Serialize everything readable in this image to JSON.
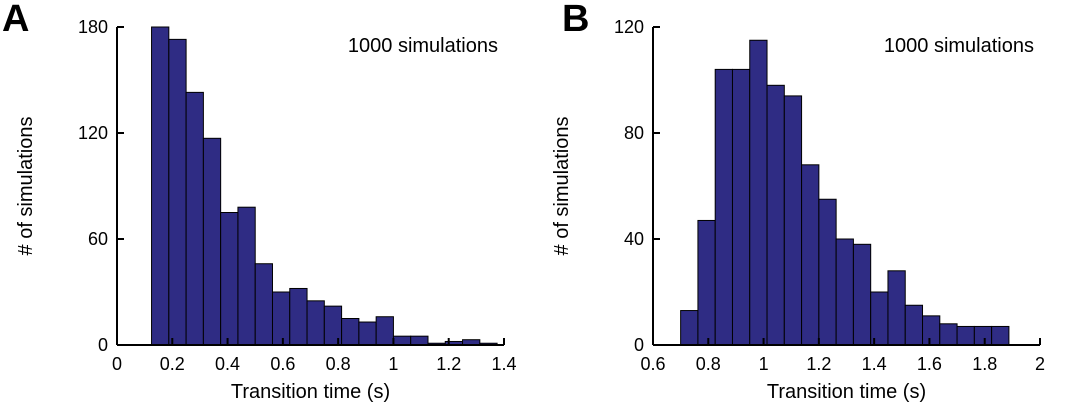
{
  "figure": {
    "background": "#ffffff",
    "bar_fill": "#2f2c84",
    "bar_stroke": "#000000",
    "axis_color": "#000000",
    "text_color": "#000000"
  },
  "panels": [
    {
      "letter": "A"
    },
    {
      "letter": "B"
    }
  ],
  "chart_data": [
    {
      "type": "bar",
      "panel": "A",
      "title": "",
      "annotation": "1000 simulations",
      "xlabel": "Transition time (s)",
      "ylabel": "# of simulations",
      "xlim": [
        0,
        1.4
      ],
      "ylim": [
        0,
        180
      ],
      "grid": false,
      "xtick_values": [
        0,
        0.2,
        0.4,
        0.6,
        0.8,
        1,
        1.2,
        1.4
      ],
      "xtick_labels": [
        "0",
        "0.2",
        "0.4",
        "0.6",
        "0.8",
        "1",
        "1.2",
        "1.4"
      ],
      "ytick_values": [
        0,
        60,
        120,
        180
      ],
      "ytick_labels": [
        "0",
        "60",
        "120",
        "180"
      ],
      "bin_start": 0.125,
      "bin_width": 0.0625,
      "counts": [
        180,
        173,
        143,
        117,
        75,
        78,
        46,
        30,
        32,
        25,
        22,
        15,
        13,
        16,
        5,
        5,
        1,
        2,
        3,
        1
      ]
    },
    {
      "type": "bar",
      "panel": "B",
      "title": "",
      "annotation": "1000 simulations",
      "xlabel": "Transition time (s)",
      "ylabel": "# of simulations",
      "xlim": [
        0.6,
        2
      ],
      "ylim": [
        0,
        120
      ],
      "grid": false,
      "xtick_values": [
        0.6,
        0.8,
        1,
        1.2,
        1.4,
        1.6,
        1.8,
        2
      ],
      "xtick_labels": [
        "0.6",
        "0.8",
        "1",
        "1.2",
        "1.4",
        "1.6",
        "1.8",
        "2"
      ],
      "ytick_values": [
        0,
        40,
        80,
        120
      ],
      "ytick_labels": [
        "0",
        "40",
        "80",
        "120"
      ],
      "bin_start": 0.7,
      "bin_width": 0.0625,
      "counts": [
        13,
        47,
        104,
        104,
        115,
        98,
        94,
        68,
        55,
        40,
        38,
        20,
        28,
        15,
        11,
        8,
        7,
        7,
        7
      ]
    }
  ]
}
